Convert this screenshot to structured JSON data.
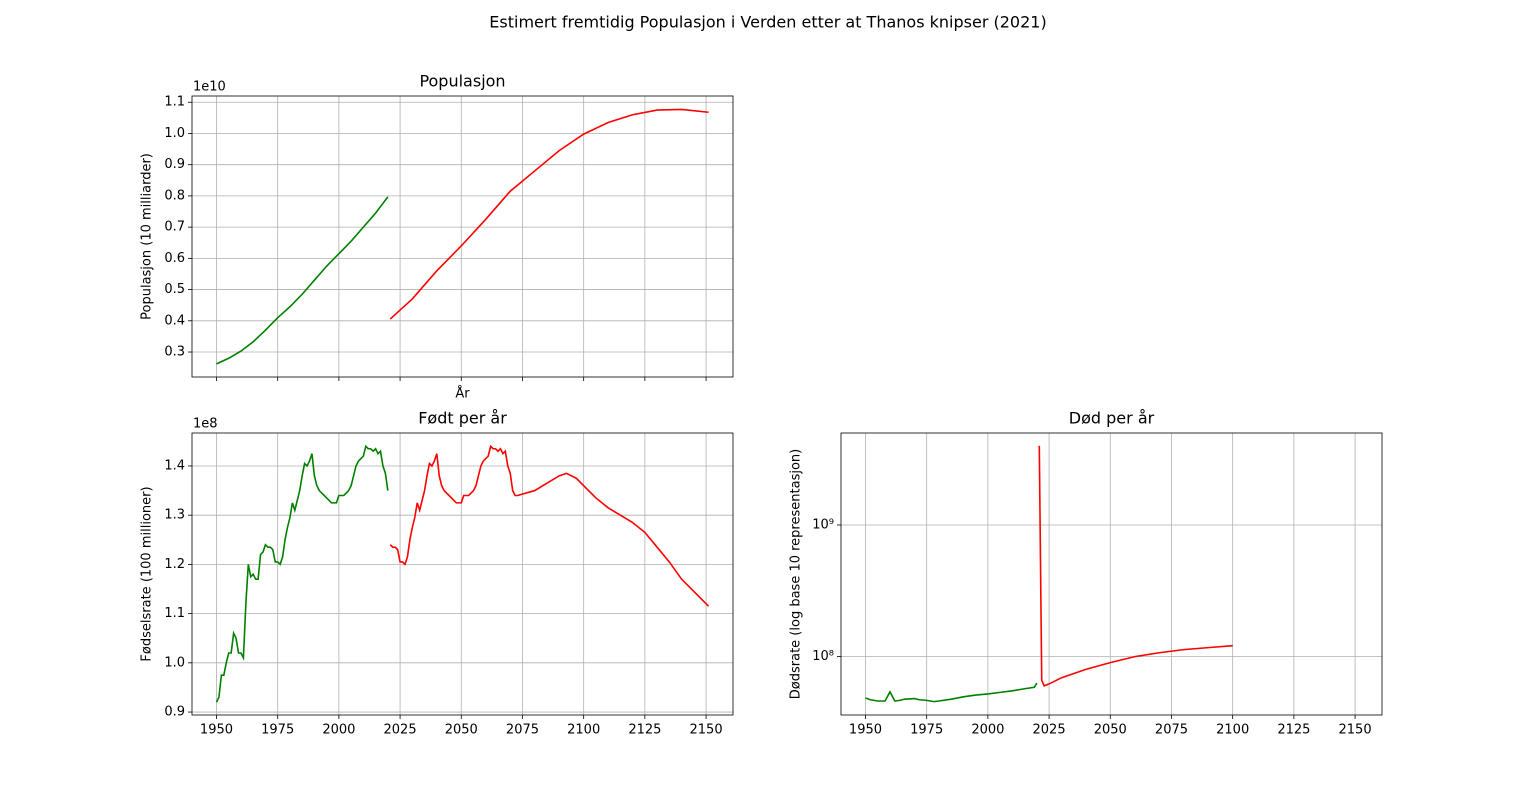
{
  "title": "Estimert fremtidig Populasjon i Verden etter at Thanos knipser (2021)",
  "chart_data": [
    {
      "type": "line",
      "title": "Populasjon",
      "xlabel": "År",
      "ylabel": "Populasjon (10 milliarder)",
      "offset_label": "1e10",
      "xlim": [
        1940,
        2161
      ],
      "ylim": [
        0.22,
        1.12
      ],
      "grid": true,
      "xticks": [
        1950,
        1975,
        2000,
        2025,
        2050,
        2075,
        2100,
        2125,
        2150
      ],
      "yticks": [
        0.3,
        0.4,
        0.5,
        0.6,
        0.7,
        0.8,
        0.9,
        {
          "value": 1,
          "label": "1.0"
        },
        1.1
      ],
      "series": [
        {
          "color": "#008000",
          "x": [
            1950,
            1955,
            1960,
            1965,
            1970,
            1975,
            1980,
            1985,
            1990,
            1995,
            2000,
            2005,
            2010,
            2015,
            2020
          ],
          "values": [
            0.262,
            0.28,
            0.303,
            0.333,
            0.37,
            0.41,
            0.445,
            0.485,
            0.53,
            0.575,
            0.615,
            0.655,
            0.7,
            0.745,
            0.797
          ]
        },
        {
          "color": "#ff0000",
          "x": [
            2021,
            2030,
            2040,
            2050,
            2060,
            2070,
            2080,
            2090,
            2100,
            2110,
            2120,
            2130,
            2140,
            2151
          ],
          "values": [
            0.406,
            0.47,
            0.56,
            0.64,
            0.725,
            0.815,
            0.88,
            0.945,
            0.998,
            1.035,
            1.06,
            1.075,
            1.077,
            1.068
          ]
        }
      ]
    },
    {
      "type": "line",
      "title": "Født per år",
      "ylabel": "Fødselsrate (100 millioner)",
      "offset_label": "1e8",
      "xlim": [
        1940,
        2161
      ],
      "ylim": [
        0.894,
        1.467
      ],
      "grid": true,
      "xticks": [
        1950,
        1975,
        2000,
        2025,
        2050,
        2075,
        2100,
        2125,
        2150
      ],
      "yticks": [
        0.9,
        {
          "value": 1,
          "label": "1.0"
        },
        1.1,
        1.2,
        1.3,
        1.4
      ],
      "series": [
        {
          "color": "#008000",
          "x": [
            1950,
            1951,
            1952,
            1953,
            1954,
            1955,
            1956,
            1957,
            1958,
            1959,
            1960,
            1961,
            1962,
            1963,
            1964,
            1965,
            1966,
            1967,
            1968,
            1969,
            1970,
            1971,
            1972,
            1973,
            1974,
            1975,
            1976,
            1977,
            1978,
            1979,
            1980,
            1981,
            1982,
            1983,
            1984,
            1985,
            1986,
            1987,
            1988,
            1989,
            1990,
            1991,
            1992,
            1993,
            1994,
            1995,
            1996,
            1997,
            1998,
            1999,
            2000,
            2001,
            2002,
            2003,
            2004,
            2005,
            2006,
            2007,
            2008,
            2009,
            2010,
            2011,
            2012,
            2013,
            2014,
            2015,
            2016,
            2017,
            2018,
            2019,
            2020
          ],
          "values": [
            0.92,
            0.93,
            0.975,
            0.975,
            1.0,
            1.02,
            1.02,
            1.06,
            1.05,
            1.02,
            1.02,
            1.01,
            1.12,
            1.2,
            1.175,
            1.18,
            1.17,
            1.17,
            1.22,
            1.225,
            1.24,
            1.235,
            1.235,
            1.23,
            1.205,
            1.205,
            1.2,
            1.215,
            1.25,
            1.275,
            1.295,
            1.325,
            1.31,
            1.33,
            1.35,
            1.38,
            1.405,
            1.4,
            1.41,
            1.425,
            1.38,
            1.36,
            1.35,
            1.345,
            1.34,
            1.335,
            1.33,
            1.325,
            1.325,
            1.325,
            1.34,
            1.34,
            1.34,
            1.345,
            1.35,
            1.36,
            1.38,
            1.4,
            1.41,
            1.415,
            1.42,
            1.44,
            1.435,
            1.435,
            1.43,
            1.435,
            1.425,
            1.43,
            1.4,
            1.385,
            1.35
          ]
        },
        {
          "color": "#ff0000",
          "x": [
            2021,
            2022,
            2023,
            2024,
            2025,
            2026,
            2027,
            2028,
            2029,
            2030,
            2031,
            2032,
            2033,
            2034,
            2035,
            2036,
            2037,
            2038,
            2039,
            2040,
            2041,
            2042,
            2043,
            2044,
            2045,
            2046,
            2047,
            2048,
            2049,
            2050,
            2051,
            2052,
            2053,
            2054,
            2055,
            2056,
            2057,
            2058,
            2059,
            2060,
            2061,
            2062,
            2063,
            2064,
            2065,
            2066,
            2067,
            2068,
            2069,
            2070,
            2071,
            2072,
            2073,
            2080,
            2085,
            2090,
            2093,
            2097,
            2100,
            2105,
            2110,
            2115,
            2120,
            2125,
            2130,
            2135,
            2140,
            2145,
            2151
          ],
          "values": [
            1.24,
            1.235,
            1.235,
            1.23,
            1.205,
            1.205,
            1.2,
            1.215,
            1.25,
            1.275,
            1.295,
            1.325,
            1.31,
            1.33,
            1.35,
            1.38,
            1.405,
            1.4,
            1.41,
            1.425,
            1.38,
            1.36,
            1.35,
            1.345,
            1.34,
            1.335,
            1.33,
            1.325,
            1.325,
            1.325,
            1.34,
            1.34,
            1.34,
            1.345,
            1.35,
            1.36,
            1.38,
            1.4,
            1.41,
            1.415,
            1.42,
            1.44,
            1.435,
            1.435,
            1.43,
            1.435,
            1.425,
            1.43,
            1.4,
            1.385,
            1.35,
            1.34,
            1.34,
            1.35,
            1.365,
            1.38,
            1.385,
            1.375,
            1.36,
            1.335,
            1.315,
            1.3,
            1.285,
            1.265,
            1.235,
            1.205,
            1.17,
            1.145,
            1.115
          ]
        }
      ]
    },
    {
      "type": "line",
      "title": "Død per år",
      "ylabel": "Dødsrate (log base 10 representasjon)",
      "yscale": "log",
      "xlim": [
        1940,
        2161
      ],
      "ylim": [
        36000000,
        5000000000
      ],
      "grid": true,
      "xticks": [
        1950,
        1975,
        2000,
        2025,
        2050,
        2075,
        2100,
        2125,
        2150
      ],
      "yticks": [
        {
          "value": 100000000,
          "label": "10⁸"
        },
        {
          "value": 1000000000,
          "label": "10⁹"
        }
      ],
      "series": [
        {
          "color": "#008000",
          "x": [
            1950,
            1952,
            1955,
            1958,
            1960,
            1962,
            1964,
            1966,
            1970,
            1972,
            1975,
            1978,
            1980,
            1985,
            1990,
            1995,
            2000,
            2005,
            2010,
            2015,
            2019,
            2020
          ],
          "values": [
            48500000,
            47000000,
            46000000,
            46000000,
            54000000,
            46000000,
            46500000,
            47500000,
            48000000,
            47000000,
            46500000,
            45500000,
            46000000,
            47500000,
            49500000,
            51000000,
            52000000,
            53500000,
            55000000,
            57000000,
            58500000,
            63000000
          ]
        },
        {
          "color": "#ff0000",
          "x": [
            2021,
            2022,
            2023,
            2025,
            2030,
            2040,
            2050,
            2060,
            2070,
            2080,
            2090,
            2100
          ],
          "values": [
            4000000000,
            66000000,
            60000000,
            62000000,
            69000000,
            80000000,
            90000000,
            100000000,
            107000000,
            113000000,
            117000000,
            121000000
          ]
        }
      ]
    }
  ]
}
